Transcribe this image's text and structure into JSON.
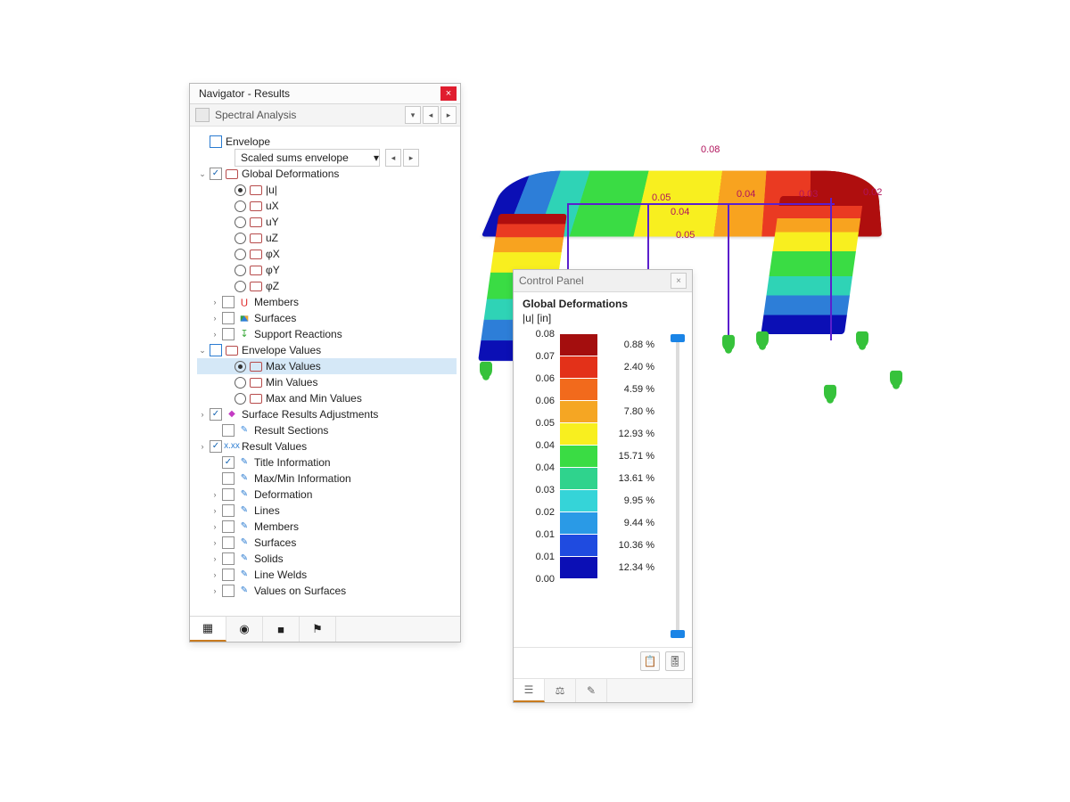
{
  "navigator": {
    "title": "Navigator - Results",
    "mode": "Spectral Analysis",
    "envelope_label": "Envelope",
    "scale_combo": "Scaled sums envelope",
    "items": {
      "global_def": "Global Deformations",
      "u": "|u|",
      "ux": "uX",
      "uy": "uY",
      "uz": "uZ",
      "phix": "φX",
      "phiy": "φY",
      "phiz": "φZ",
      "members": "Members",
      "surfaces": "Surfaces",
      "reactions": "Support Reactions",
      "env_values": "Envelope Values",
      "max_values": "Max Values",
      "min_values": "Min Values",
      "maxmin_values": "Max and Min Values",
      "sra": "Surface Results Adjustments",
      "sections": "Result Sections",
      "result_values": "Result Values",
      "title_info": "Title Information",
      "maxmin_info": "Max/Min Information",
      "deformation": "Deformation",
      "lines": "Lines",
      "members2": "Members",
      "surfaces2": "Surfaces",
      "solids": "Solids",
      "line_welds": "Line Welds",
      "values_on_surf": "Values on Surfaces"
    }
  },
  "viewport_labels": {
    "a": "0.08",
    "b": "0.05",
    "c": "0.04",
    "d": "0.04",
    "e": "0.05",
    "f": "0.03",
    "g": "0.02"
  },
  "control_panel": {
    "title": "Control Panel",
    "heading": "Global Deformations",
    "unit": "|u| [in]",
    "legend": [
      {
        "v": "0.08",
        "c": "#a40e0e",
        "p": "0.88 %"
      },
      {
        "v": "0.07",
        "c": "#e33119",
        "p": "2.40 %"
      },
      {
        "v": "0.06",
        "c": "#f26a1c",
        "p": "4.59 %"
      },
      {
        "v": "0.06",
        "c": "#f5a623",
        "p": "7.80 %"
      },
      {
        "v": "0.05",
        "c": "#f8ef1f",
        "p": "12.93 %"
      },
      {
        "v": "0.04",
        "c": "#3adc44",
        "p": "15.71 %"
      },
      {
        "v": "0.04",
        "c": "#2fd38d",
        "p": "13.61 %"
      },
      {
        "v": "0.03",
        "c": "#35d4d8",
        "p": "9.95 %"
      },
      {
        "v": "0.02",
        "c": "#2a9ae6",
        "p": "9.44 %"
      },
      {
        "v": "0.01",
        "c": "#1f4be0",
        "p": "10.36 %"
      },
      {
        "v": "0.01",
        "c": "#0b0fb5",
        "p": "12.34 %"
      }
    ],
    "final_value": "0.00"
  }
}
